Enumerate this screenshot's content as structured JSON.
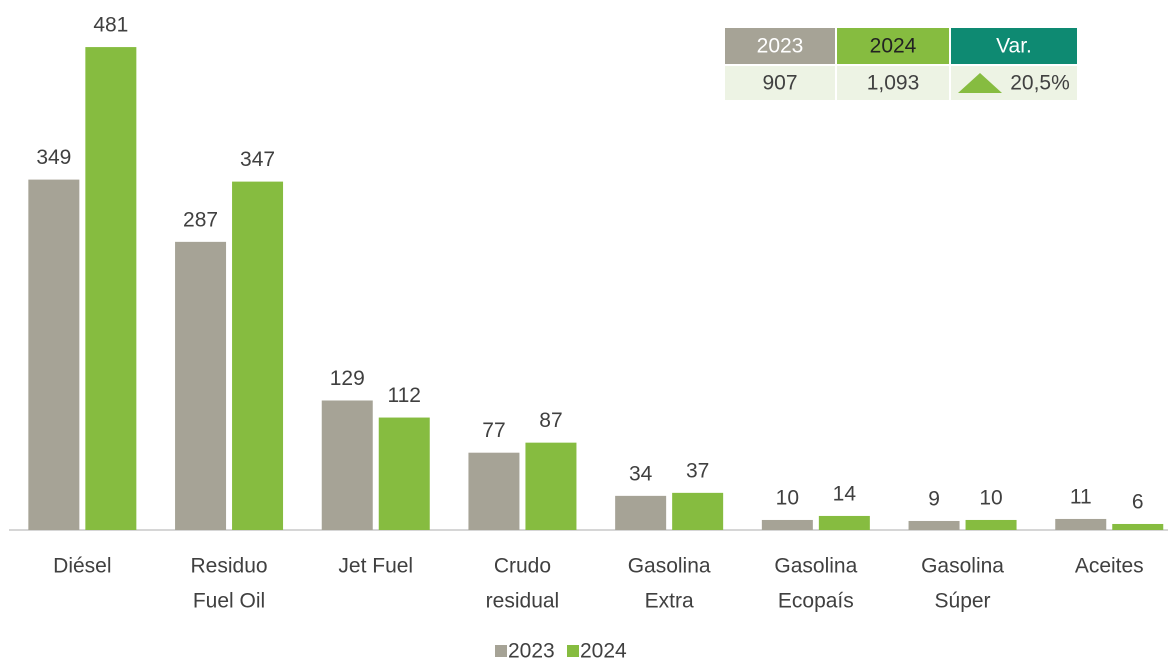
{
  "chart_data": {
    "type": "bar",
    "categories": [
      [
        "Diésel"
      ],
      [
        "Residuo",
        "Fuel Oil"
      ],
      [
        "Jet Fuel"
      ],
      [
        "Crudo",
        "residual"
      ],
      [
        "Gasolina",
        "Extra"
      ],
      [
        "Gasolina",
        "Ecopaís"
      ],
      [
        "Gasolina",
        "Súper"
      ],
      [
        "Aceites"
      ]
    ],
    "series": [
      {
        "name": "2023",
        "color": "#a6a396",
        "values": [
          349,
          287,
          129,
          77,
          34,
          10,
          9,
          11
        ]
      },
      {
        "name": "2024",
        "color": "#86bc40",
        "values": [
          481,
          347,
          112,
          87,
          37,
          14,
          10,
          6
        ]
      }
    ],
    "ylim": [
      0,
      500
    ],
    "legend": "bottom"
  },
  "table": {
    "header": [
      "2023",
      "2024",
      "Var."
    ],
    "header_colors": [
      "#a6a396",
      "#86bc40",
      "#0e8a72"
    ],
    "rows": [
      [
        "907",
        "1,093",
        "20,5%"
      ]
    ]
  }
}
